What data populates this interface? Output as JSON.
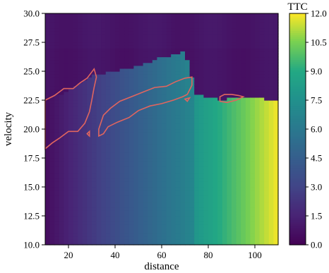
{
  "chart_data": {
    "type": "heatmap",
    "xlabel": "distance",
    "ylabel": "velocity",
    "colorbar_title": "TTC",
    "xlim": [
      10,
      110
    ],
    "ylim": [
      10.0,
      30.0
    ],
    "x_ticks": [
      20,
      40,
      60,
      80,
      100
    ],
    "x_tick_labels": [
      "20",
      "40",
      "60",
      "80",
      "100"
    ],
    "y_ticks": [
      10.0,
      12.5,
      15.0,
      17.5,
      20.0,
      22.5,
      25.0,
      27.5,
      30.0
    ],
    "y_tick_labels": [
      "10.0",
      "12.5",
      "15.0",
      "17.5",
      "20.0",
      "22.5",
      "25.0",
      "27.5",
      "30.0"
    ],
    "colorbar_range": [
      0.0,
      12.0
    ],
    "colorbar_ticks": [
      0.0,
      1.5,
      3.0,
      4.5,
      6.0,
      7.5,
      9.0,
      10.5,
      12.0
    ],
    "colorbar_tick_labels": [
      "0.0",
      "1.5",
      "3.0",
      "4.5",
      "6.0",
      "7.5",
      "9.0",
      "10.5",
      "12.0"
    ],
    "colormap": "viridis",
    "region_boundary": [
      {
        "distance": 10,
        "velocity": 22.6
      },
      {
        "distance": 20,
        "velocity": 23.3
      },
      {
        "distance": 30,
        "velocity": 24.7
      },
      {
        "distance": 40,
        "velocity": 25.0
      },
      {
        "distance": 50,
        "velocity": 25.5
      },
      {
        "distance": 60,
        "velocity": 26.2
      },
      {
        "distance": 70,
        "velocity": 26.7
      },
      {
        "distance": 75,
        "velocity": 23.0
      },
      {
        "distance": 85,
        "velocity": 22.6
      },
      {
        "distance": 100,
        "velocity": 22.7
      },
      {
        "distance": 110,
        "velocity": 22.5
      }
    ],
    "contour_level": 0.5,
    "contour_color": "#e0655f",
    "contours": [
      [
        [
          10,
          22.5
        ],
        [
          14,
          22.9
        ],
        [
          18,
          23.5
        ],
        [
          22,
          23.5
        ],
        [
          25,
          24.0
        ],
        [
          28,
          24.4
        ],
        [
          31,
          25.2
        ],
        [
          32,
          24.5
        ],
        [
          31,
          23.6
        ],
        [
          30,
          22.5
        ],
        [
          29,
          21.5
        ],
        [
          27,
          20.5
        ],
        [
          24,
          19.8
        ],
        [
          20,
          19.8
        ],
        [
          16,
          19.2
        ],
        [
          13,
          18.8
        ],
        [
          10,
          18.3
        ]
      ],
      [
        [
          33,
          20.0
        ],
        [
          35,
          21.2
        ],
        [
          38,
          21.8
        ],
        [
          42,
          22.4
        ],
        [
          47,
          22.8
        ],
        [
          52,
          23.2
        ],
        [
          57,
          23.6
        ],
        [
          62,
          23.7
        ],
        [
          66,
          24.1
        ],
        [
          70,
          24.4
        ],
        [
          73,
          24.5
        ],
        [
          73,
          23.8
        ],
        [
          71,
          23.0
        ],
        [
          69,
          22.8
        ],
        [
          65,
          22.5
        ],
        [
          60,
          22.2
        ],
        [
          55,
          22.0
        ],
        [
          50,
          21.6
        ],
        [
          46,
          21.0
        ],
        [
          41,
          20.6
        ],
        [
          37,
          20.2
        ],
        [
          35,
          19.6
        ],
        [
          33,
          19.4
        ]
      ],
      [
        [
          85,
          22.8
        ],
        [
          87,
          23.0
        ],
        [
          90,
          23.0
        ],
        [
          93,
          22.9
        ],
        [
          95,
          22.8
        ],
        [
          92,
          22.5
        ],
        [
          88,
          22.3
        ],
        [
          85,
          22.4
        ]
      ],
      [
        [
          70,
          22.6
        ],
        [
          72,
          22.7
        ],
        [
          71,
          22.4
        ]
      ],
      [
        [
          28,
          19.6
        ],
        [
          29,
          19.8
        ],
        [
          29,
          19.4
        ]
      ]
    ]
  }
}
